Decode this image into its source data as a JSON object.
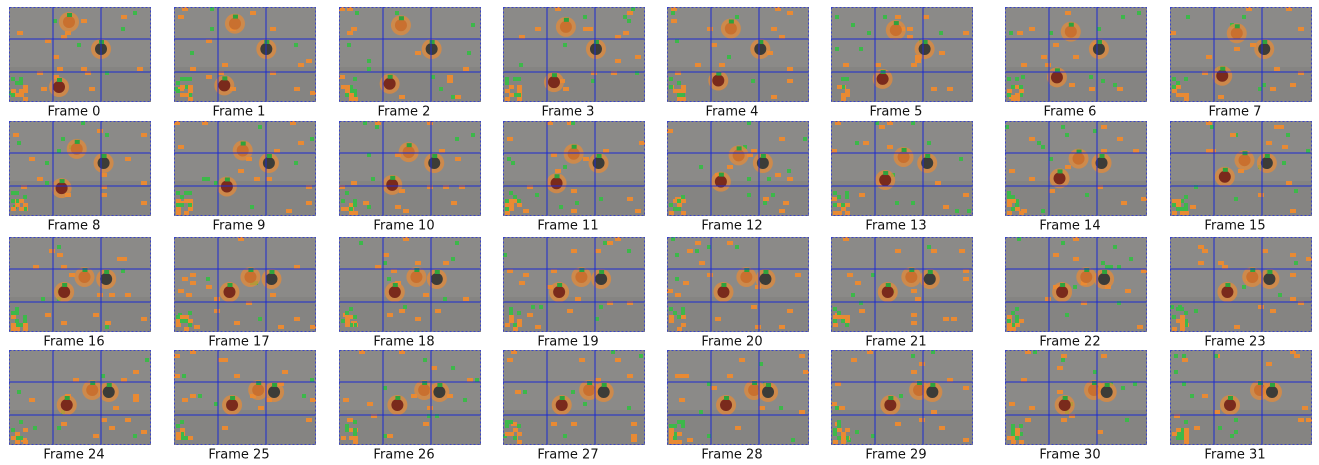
{
  "frames": [
    {
      "label": "Frame 0"
    },
    {
      "label": "Frame 1"
    },
    {
      "label": "Frame 2"
    },
    {
      "label": "Frame 3"
    },
    {
      "label": "Frame 4"
    },
    {
      "label": "Frame 5"
    },
    {
      "label": "Frame 6"
    },
    {
      "label": "Frame 7"
    },
    {
      "label": "Frame 8"
    },
    {
      "label": "Frame 9"
    },
    {
      "label": "Frame 10"
    },
    {
      "label": "Frame 11"
    },
    {
      "label": "Frame 12"
    },
    {
      "label": "Frame 13"
    },
    {
      "label": "Frame 14"
    },
    {
      "label": "Frame 15"
    },
    {
      "label": "Frame 16"
    },
    {
      "label": "Frame 17"
    },
    {
      "label": "Frame 18"
    },
    {
      "label": "Frame 19"
    },
    {
      "label": "Frame 20"
    },
    {
      "label": "Frame 21"
    },
    {
      "label": "Frame 22"
    },
    {
      "label": "Frame 23"
    },
    {
      "label": "Frame 24"
    },
    {
      "label": "Frame 25"
    },
    {
      "label": "Frame 26"
    },
    {
      "label": "Frame 27"
    },
    {
      "label": "Frame 28"
    },
    {
      "label": "Frame 29"
    },
    {
      "label": "Frame 30"
    },
    {
      "label": "Frame 31"
    }
  ]
}
